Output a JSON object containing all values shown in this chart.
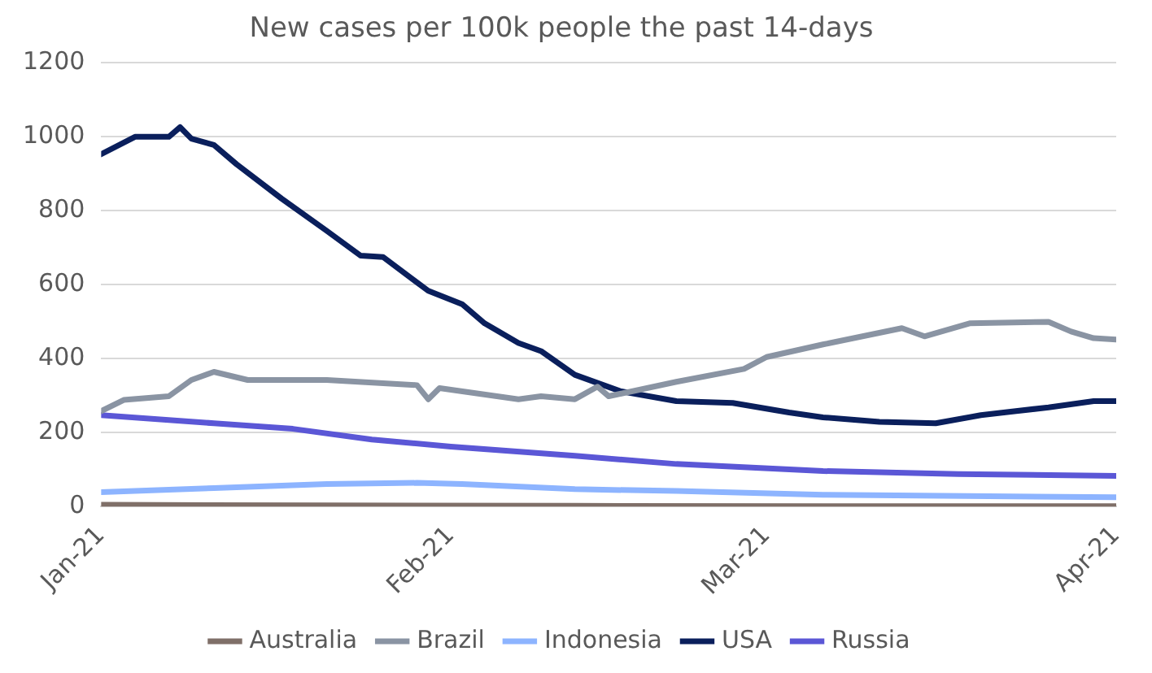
{
  "chart_data": {
    "type": "line",
    "title": "New cases per 100k people the past 14-days",
    "xlim": [
      "2021-01-01",
      "2021-04-01"
    ],
    "xticks": [
      {
        "value": "2021-01-01",
        "label": "Jan-21"
      },
      {
        "value": "2021-02-01",
        "label": "Feb-21"
      },
      {
        "value": "2021-03-01",
        "label": "Mar-21"
      },
      {
        "value": "2021-04-01",
        "label": "Apr-21"
      }
    ],
    "ylim": [
      0,
      1200
    ],
    "yticks": [
      0,
      200,
      400,
      600,
      800,
      1000,
      1200
    ],
    "grid": "y",
    "legend": "bottom",
    "marker": "none",
    "line_style": "solid",
    "series": [
      {
        "name": "Australia",
        "color": "#7f6f68",
        "x": [
          "2021-01-01",
          "2021-01-21",
          "2021-02-12",
          "2021-03-06",
          "2021-04-01"
        ],
        "values": [
          5,
          3,
          2,
          1,
          1
        ]
      },
      {
        "name": "Brazil",
        "color": "#8a94a3",
        "x": [
          "2021-01-01",
          "2021-01-03",
          "2021-01-07",
          "2021-01-09",
          "2021-01-11",
          "2021-01-14",
          "2021-01-21",
          "2021-01-29",
          "2021-01-30",
          "2021-01-31",
          "2021-02-07",
          "2021-02-09",
          "2021-02-12",
          "2021-02-14",
          "2021-02-15",
          "2021-02-21",
          "2021-02-27",
          "2021-03-01",
          "2021-03-06",
          "2021-03-13",
          "2021-03-15",
          "2021-03-19",
          "2021-03-26",
          "2021-03-28",
          "2021-03-30",
          "2021-04-01"
        ],
        "values": [
          258,
          288,
          298,
          342,
          364,
          342,
          342,
          328,
          290,
          320,
          290,
          298,
          290,
          324,
          298,
          337,
          372,
          404,
          438,
          482,
          460,
          495,
          499,
          473,
          455,
          451
        ]
      },
      {
        "name": "Indonesia",
        "color": "#8db4ff",
        "x": [
          "2021-01-01",
          "2021-01-11",
          "2021-01-21",
          "2021-01-29",
          "2021-02-02",
          "2021-02-12",
          "2021-02-21",
          "2021-03-06",
          "2021-04-01"
        ],
        "values": [
          39,
          50,
          61,
          64,
          61,
          47,
          42,
          32,
          25
        ]
      },
      {
        "name": "USA",
        "color": "#0a1f5c",
        "x": [
          "2021-01-01",
          "2021-01-04",
          "2021-01-07",
          "2021-01-08",
          "2021-01-09",
          "2021-01-11",
          "2021-01-13",
          "2021-01-17",
          "2021-01-21",
          "2021-01-24",
          "2021-01-26",
          "2021-01-30",
          "2021-02-02",
          "2021-02-04",
          "2021-02-07",
          "2021-02-09",
          "2021-02-12",
          "2021-02-16",
          "2021-02-21",
          "2021-02-26",
          "2021-03-03",
          "2021-03-06",
          "2021-03-11",
          "2021-03-16",
          "2021-03-20",
          "2021-03-26",
          "2021-03-30",
          "2021-04-01"
        ],
        "values": [
          952,
          999,
          999,
          1025,
          994,
          977,
          925,
          832,
          745,
          678,
          674,
          583,
          547,
          495,
          442,
          420,
          356,
          312,
          285,
          280,
          254,
          241,
          229,
          225,
          247,
          268,
          285,
          285
        ]
      },
      {
        "name": "Russia",
        "color": "#5b57d6",
        "x": [
          "2021-01-01",
          "2021-01-11",
          "2021-01-18",
          "2021-01-25",
          "2021-02-01",
          "2021-02-12",
          "2021-02-21",
          "2021-03-06",
          "2021-03-18",
          "2021-04-01"
        ],
        "values": [
          247,
          225,
          210,
          181,
          162,
          137,
          115,
          96,
          88,
          83
        ]
      }
    ]
  }
}
